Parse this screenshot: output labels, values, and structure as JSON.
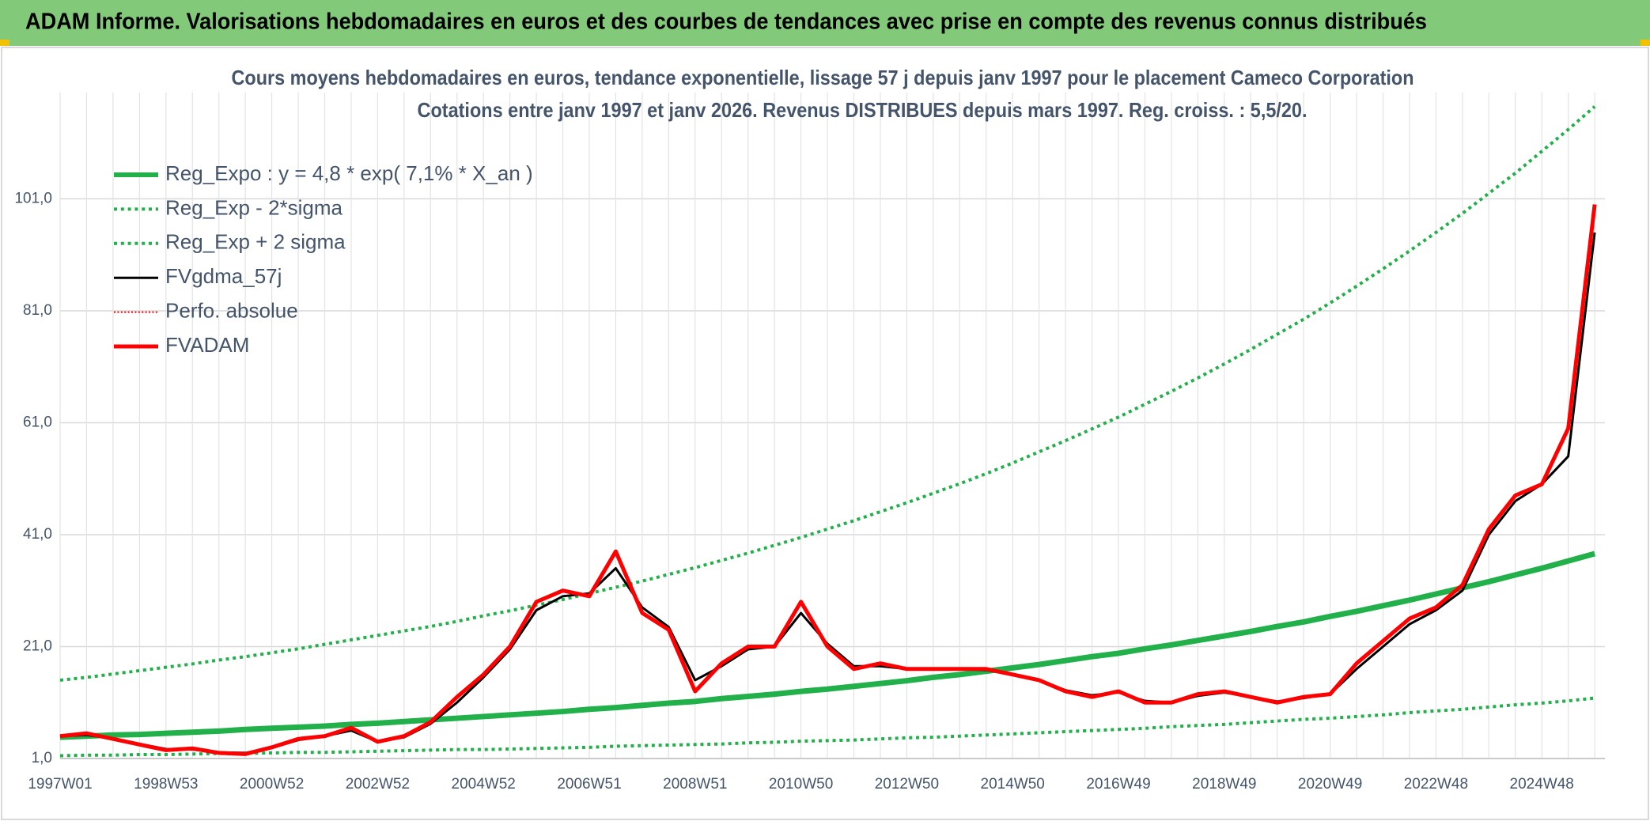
{
  "header": {
    "title": "ADAM Informe. Valorisations hebdomadaires en euros et des courbes de tendances avec prise en compte des revenus connus distribués"
  },
  "chart_data": {
    "type": "line",
    "title": "Cours moyens hebdomadaires en euros, tendance exponentielle, lissage 57 j depuis janv 1997 pour le placement Cameco Corporation",
    "subtitle": "Cotations entre janv 1997 et janv 2026. Revenus DISTRIBUES depuis mars 1997. Reg. croiss. : 5,5/20.",
    "categories": [
      "1997W01",
      null,
      null,
      null,
      "1998W53",
      null,
      null,
      null,
      "2000W52",
      null,
      null,
      null,
      "2002W52",
      null,
      null,
      null,
      "2004W52",
      null,
      null,
      null,
      "2006W51",
      null,
      null,
      null,
      "2008W51",
      null,
      null,
      null,
      "2010W50",
      null,
      null,
      null,
      "2012W50",
      null,
      null,
      null,
      "2014W50",
      null,
      null,
      null,
      "2016W49",
      null,
      null,
      null,
      "2018W49",
      null,
      null,
      null,
      "2020W49",
      null,
      null,
      null,
      "2022W48",
      null,
      null,
      null,
      "2024W48",
      null,
      null
    ],
    "ylim": [
      1,
      120
    ],
    "yticks": [
      {
        "value": 1,
        "label": "1,0"
      },
      {
        "value": 21,
        "label": "21,0"
      },
      {
        "value": 41,
        "label": "41,0"
      },
      {
        "value": 61,
        "label": "61,0"
      },
      {
        "value": 81,
        "label": "81,0"
      },
      {
        "value": 101,
        "label": "101,0"
      }
    ],
    "grid": true,
    "legend": "top-left",
    "series": [
      {
        "name": "Reg_Expo : y = 4,8 * exp( 7,1% *  X_an )",
        "color": "#22b04b",
        "style": "solid",
        "width": 7,
        "values": [
          4.8,
          5.0,
          5.2,
          5.3,
          5.5,
          5.7,
          5.9,
          6.2,
          6.4,
          6.6,
          6.8,
          7.1,
          7.3,
          7.6,
          7.9,
          8.2,
          8.5,
          8.8,
          9.1,
          9.4,
          9.8,
          10.1,
          10.5,
          10.9,
          11.2,
          11.7,
          12.1,
          12.5,
          13.0,
          13.4,
          13.9,
          14.4,
          14.9,
          15.5,
          16.0,
          16.6,
          17.2,
          17.8,
          18.5,
          19.2,
          19.8,
          20.6,
          21.3,
          22.1,
          22.9,
          23.7,
          24.6,
          25.4,
          26.4,
          27.3,
          28.3,
          29.3,
          30.4,
          31.5,
          32.6,
          33.8,
          35.0,
          36.3,
          37.6
        ]
      },
      {
        "name": "Reg_Exp - 2*sigma",
        "color": "#22b04b",
        "style": "dotted",
        "width": 4,
        "values": [
          1.5,
          1.6,
          1.6,
          1.7,
          1.7,
          1.8,
          1.9,
          1.9,
          2.0,
          2.1,
          2.1,
          2.2,
          2.3,
          2.4,
          2.5,
          2.6,
          2.6,
          2.7,
          2.8,
          2.9,
          3.0,
          3.2,
          3.3,
          3.4,
          3.5,
          3.6,
          3.8,
          3.9,
          4.1,
          4.2,
          4.3,
          4.5,
          4.7,
          4.8,
          5.0,
          5.2,
          5.4,
          5.6,
          5.8,
          6.0,
          6.2,
          6.4,
          6.7,
          6.9,
          7.1,
          7.4,
          7.7,
          8.0,
          8.2,
          8.5,
          8.8,
          9.2,
          9.5,
          9.8,
          10.2,
          10.6,
          10.9,
          11.3,
          11.8
        ]
      },
      {
        "name": "Reg_Exp + 2 sigma",
        "color": "#22b04b",
        "style": "dotted",
        "width": 4,
        "values": [
          15.0,
          15.5,
          16.1,
          16.7,
          17.3,
          17.9,
          18.6,
          19.2,
          19.9,
          20.6,
          21.4,
          22.2,
          23.0,
          23.8,
          24.6,
          25.5,
          26.5,
          27.4,
          28.4,
          29.4,
          30.5,
          31.6,
          32.7,
          33.9,
          35.1,
          36.4,
          37.7,
          39.1,
          40.5,
          42.0,
          43.5,
          45.1,
          46.7,
          48.4,
          50.1,
          51.9,
          53.8,
          55.8,
          57.8,
          59.9,
          62.0,
          64.3,
          66.6,
          69.0,
          71.5,
          74.1,
          76.8,
          79.5,
          82.4,
          85.4,
          88.5,
          91.7,
          95.0,
          98.4,
          102.0,
          105.6,
          109.5,
          113.4,
          117.5
        ]
      },
      {
        "name": "FVgdma_57j",
        "color": "#000000",
        "style": "solid",
        "width": 3,
        "values": [
          5,
          5.2,
          4.6,
          3.6,
          2.7,
          2.6,
          2.1,
          2.0,
          2.9,
          4.3,
          5.0,
          6.0,
          4.0,
          4.8,
          7.2,
          11,
          15.5,
          20.5,
          27.5,
          30,
          30.5,
          35,
          28,
          24.5,
          15,
          17.5,
          20.5,
          21,
          27,
          21.5,
          17.5,
          17.5,
          17,
          17,
          17,
          16.8,
          16,
          15,
          13.2,
          12.3,
          12.8,
          11.3,
          11,
          12.2,
          12.8,
          12,
          11.2,
          11.8,
          12.5,
          17,
          21,
          25,
          27.5,
          31,
          41,
          47,
          50,
          55,
          95
        ]
      },
      {
        "name": "Perfo. absolue",
        "color": "#ff0000",
        "style": "dotted",
        "width": 2,
        "values": [
          5,
          5.5,
          4.5,
          3.5,
          2.5,
          2.8,
          2,
          1.8,
          3,
          4.5,
          5,
          6.5,
          4,
          5,
          7.5,
          12,
          16,
          21,
          29,
          31,
          30,
          38,
          27,
          24,
          13,
          18,
          21,
          21,
          29,
          21,
          17,
          18,
          17,
          17,
          17,
          17,
          16,
          15,
          13,
          12,
          13,
          11,
          11,
          12.5,
          13,
          12,
          11,
          12,
          12.5,
          18,
          22,
          26,
          28,
          32,
          42,
          48,
          50,
          60,
          100
        ]
      },
      {
        "name": "FVADAM",
        "color": "#ff0000",
        "style": "solid",
        "width": 5,
        "values": [
          5,
          5.5,
          4.5,
          3.5,
          2.5,
          2.8,
          2,
          1.8,
          3,
          4.5,
          5,
          6.5,
          4,
          5,
          7.5,
          12,
          16,
          21,
          29,
          31,
          30,
          38,
          27,
          24,
          13,
          18,
          21,
          21,
          29,
          21,
          17,
          18,
          17,
          17,
          17,
          17,
          16,
          15,
          13,
          12,
          13,
          11,
          11,
          12.5,
          13,
          12,
          11,
          12,
          12.5,
          18,
          22,
          26,
          28,
          32,
          42,
          48,
          50,
          60,
          100
        ]
      }
    ]
  }
}
